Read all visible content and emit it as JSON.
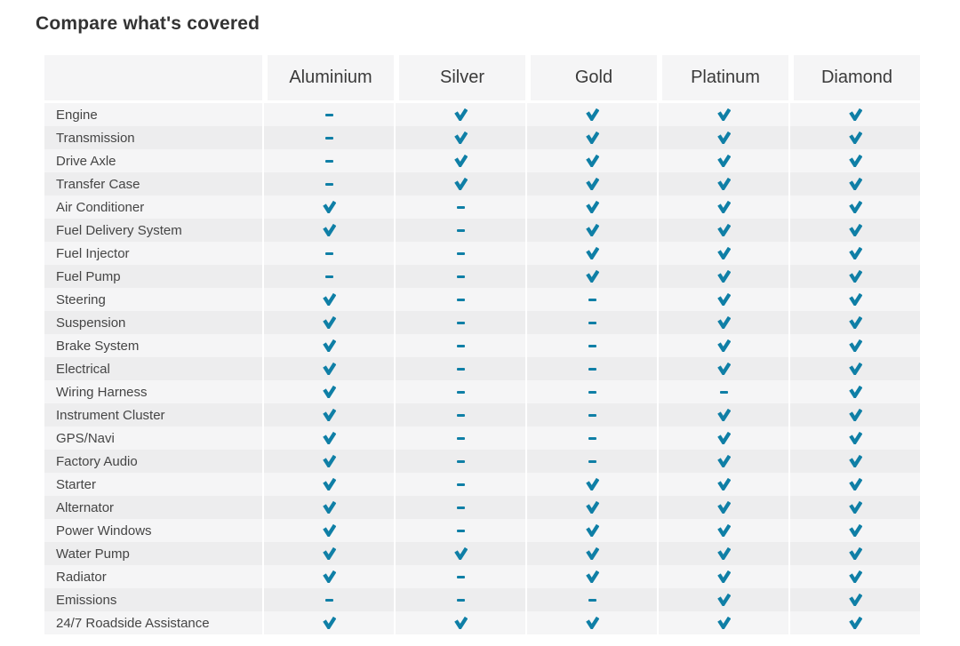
{
  "title": "Compare what's covered",
  "colors": {
    "accent": "#0f7fa6",
    "row_light": "#f5f5f6",
    "row_dark": "#ededee",
    "header_bg": "#f5f5f6",
    "title_text": "#333333",
    "header_text": "#3a3a3a",
    "label_text": "#454545"
  },
  "icons": {
    "check": "check-icon",
    "dash": "dash-icon"
  },
  "table": {
    "columns": [
      "Aluminium",
      "Silver",
      "Gold",
      "Platinum",
      "Diamond"
    ],
    "rows": [
      {
        "label": "Engine",
        "values": [
          "dash",
          "check",
          "check",
          "check",
          "check"
        ]
      },
      {
        "label": "Transmission",
        "values": [
          "dash",
          "check",
          "check",
          "check",
          "check"
        ]
      },
      {
        "label": "Drive Axle",
        "values": [
          "dash",
          "check",
          "check",
          "check",
          "check"
        ]
      },
      {
        "label": "Transfer Case",
        "values": [
          "dash",
          "check",
          "check",
          "check",
          "check"
        ]
      },
      {
        "label": "Air Conditioner",
        "values": [
          "check",
          "dash",
          "check",
          "check",
          "check"
        ]
      },
      {
        "label": "Fuel Delivery System",
        "values": [
          "check",
          "dash",
          "check",
          "check",
          "check"
        ]
      },
      {
        "label": "Fuel Injector",
        "values": [
          "dash",
          "dash",
          "check",
          "check",
          "check"
        ]
      },
      {
        "label": "Fuel Pump",
        "values": [
          "dash",
          "dash",
          "check",
          "check",
          "check"
        ]
      },
      {
        "label": "Steering",
        "values": [
          "check",
          "dash",
          "dash",
          "check",
          "check"
        ]
      },
      {
        "label": "Suspension",
        "values": [
          "check",
          "dash",
          "dash",
          "check",
          "check"
        ]
      },
      {
        "label": "Brake System",
        "values": [
          "check",
          "dash",
          "dash",
          "check",
          "check"
        ]
      },
      {
        "label": "Electrical",
        "values": [
          "check",
          "dash",
          "dash",
          "check",
          "check"
        ]
      },
      {
        "label": "Wiring Harness",
        "values": [
          "check",
          "dash",
          "dash",
          "dash",
          "check"
        ]
      },
      {
        "label": "Instrument Cluster",
        "values": [
          "check",
          "dash",
          "dash",
          "check",
          "check"
        ]
      },
      {
        "label": "GPS/Navi",
        "values": [
          "check",
          "dash",
          "dash",
          "check",
          "check"
        ]
      },
      {
        "label": "Factory Audio",
        "values": [
          "check",
          "dash",
          "dash",
          "check",
          "check"
        ]
      },
      {
        "label": "Starter",
        "values": [
          "check",
          "dash",
          "check",
          "check",
          "check"
        ]
      },
      {
        "label": "Alternator",
        "values": [
          "check",
          "dash",
          "check",
          "check",
          "check"
        ]
      },
      {
        "label": "Power Windows",
        "values": [
          "check",
          "dash",
          "check",
          "check",
          "check"
        ]
      },
      {
        "label": "Water Pump",
        "values": [
          "check",
          "check",
          "check",
          "check",
          "check"
        ]
      },
      {
        "label": "Radiator",
        "values": [
          "check",
          "dash",
          "check",
          "check",
          "check"
        ]
      },
      {
        "label": "Emissions",
        "values": [
          "dash",
          "dash",
          "dash",
          "check",
          "check"
        ]
      },
      {
        "label": "24/7 Roadside Assistance",
        "values": [
          "check",
          "check",
          "check",
          "check",
          "check"
        ]
      }
    ]
  }
}
